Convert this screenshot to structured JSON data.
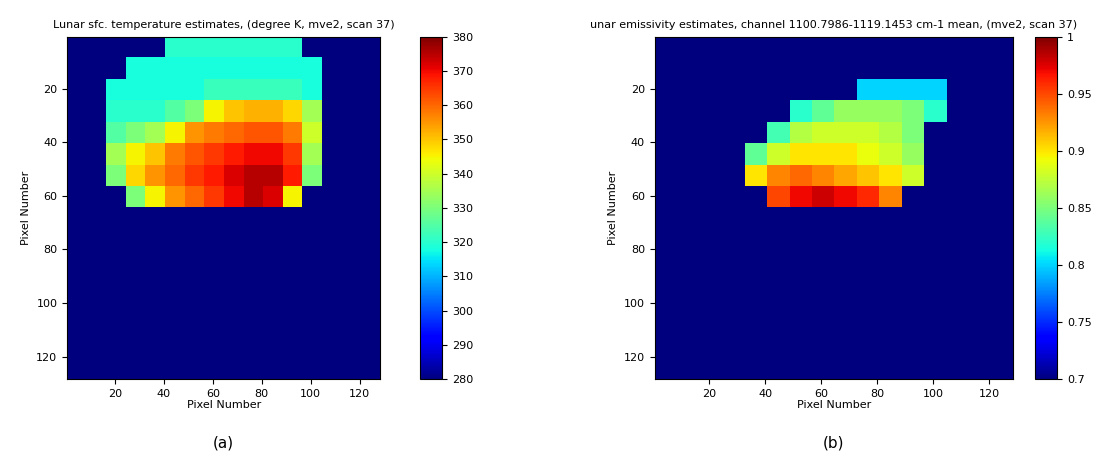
{
  "chart_data": [
    {
      "type": "heatmap",
      "title": "Lunar sfc. temperature estimates, (degree K, mve2, scan 37)",
      "x_label": "Pixel Number",
      "y_label": "Pixel Number",
      "caption": "(a)",
      "xlim": [
        0.5,
        128.5
      ],
      "ylim": [
        128.5,
        0.5
      ],
      "xticks": [
        20,
        40,
        60,
        80,
        100,
        120
      ],
      "yticks": [
        20,
        40,
        60,
        80,
        100,
        120
      ],
      "colorbar_range": [
        280,
        380
      ],
      "colorbar_ticks": [
        280,
        290,
        300,
        310,
        320,
        330,
        340,
        350,
        360,
        370,
        380
      ],
      "cells": [
        [
          280,
          280,
          280,
          280,
          280,
          320,
          320,
          320,
          320,
          320,
          320,
          320,
          280,
          280,
          280,
          280
        ],
        [
          280,
          280,
          280,
          318,
          318,
          318,
          318,
          318,
          318,
          318,
          318,
          318,
          318,
          280,
          280,
          280
        ],
        [
          280,
          280,
          318,
          318,
          318,
          318,
          318,
          322,
          322,
          322,
          322,
          322,
          318,
          280,
          280,
          280
        ],
        [
          280,
          280,
          320,
          320,
          320,
          325,
          330,
          345,
          350,
          352,
          352,
          348,
          335,
          280,
          280,
          280
        ],
        [
          280,
          280,
          325,
          330,
          335,
          345,
          355,
          358,
          360,
          362,
          362,
          358,
          340,
          280,
          280,
          280
        ],
        [
          280,
          280,
          335,
          345,
          350,
          358,
          362,
          365,
          368,
          370,
          370,
          365,
          335,
          280,
          280,
          280
        ],
        [
          280,
          280,
          330,
          348,
          355,
          360,
          365,
          368,
          372,
          375,
          375,
          368,
          330,
          280,
          280,
          280
        ],
        [
          280,
          280,
          280,
          330,
          345,
          355,
          360,
          365,
          370,
          375,
          372,
          345,
          280,
          280,
          280,
          280
        ],
        [
          280,
          280,
          280,
          280,
          280,
          280,
          280,
          280,
          280,
          280,
          280,
          280,
          280,
          280,
          280,
          280
        ],
        [
          280,
          280,
          280,
          280,
          280,
          280,
          280,
          280,
          280,
          280,
          280,
          280,
          280,
          280,
          280,
          280
        ],
        [
          280,
          280,
          280,
          280,
          280,
          280,
          280,
          280,
          280,
          280,
          280,
          280,
          280,
          280,
          280,
          280
        ],
        [
          280,
          280,
          280,
          280,
          280,
          280,
          280,
          280,
          280,
          280,
          280,
          280,
          280,
          280,
          280,
          280
        ],
        [
          280,
          280,
          280,
          280,
          280,
          280,
          280,
          280,
          280,
          280,
          280,
          280,
          280,
          280,
          280,
          280
        ],
        [
          280,
          280,
          280,
          280,
          280,
          280,
          280,
          280,
          280,
          280,
          280,
          280,
          280,
          280,
          280,
          280
        ],
        [
          280,
          280,
          280,
          280,
          280,
          280,
          280,
          280,
          280,
          280,
          280,
          280,
          280,
          280,
          280,
          280
        ],
        [
          280,
          280,
          280,
          280,
          280,
          280,
          280,
          280,
          280,
          280,
          280,
          280,
          280,
          280,
          280,
          280
        ]
      ]
    },
    {
      "type": "heatmap",
      "title": "unar emissivity estimates, channel 1100.7986-1119.1453 cm-1 mean, (mve2, scan 37)",
      "x_label": "Pixel Number",
      "y_label": "Pixel Number",
      "caption": "(b)",
      "xlim": [
        0.5,
        128.5
      ],
      "ylim": [
        128.5,
        0.5
      ],
      "xticks": [
        20,
        40,
        60,
        80,
        100,
        120
      ],
      "yticks": [
        20,
        40,
        60,
        80,
        100,
        120
      ],
      "colorbar_range": [
        0.7,
        1
      ],
      "colorbar_ticks": [
        0.7,
        0.75,
        0.8,
        0.85,
        0.9,
        0.95,
        1
      ],
      "cells": [
        [
          0.7,
          0.7,
          0.7,
          0.7,
          0.7,
          0.7,
          0.7,
          0.7,
          0.7,
          0.7,
          0.7,
          0.7,
          0.7,
          0.7,
          0.7,
          0.7
        ],
        [
          0.7,
          0.7,
          0.7,
          0.7,
          0.7,
          0.7,
          0.7,
          0.7,
          0.7,
          0.7,
          0.7,
          0.7,
          0.7,
          0.7,
          0.7,
          0.7
        ],
        [
          0.7,
          0.7,
          0.7,
          0.7,
          0.7,
          0.7,
          0.7,
          0.7,
          0.7,
          0.8,
          0.8,
          0.8,
          0.8,
          0.7,
          0.7,
          0.7
        ],
        [
          0.7,
          0.7,
          0.7,
          0.7,
          0.7,
          0.7,
          0.82,
          0.84,
          0.86,
          0.86,
          0.86,
          0.85,
          0.82,
          0.7,
          0.7,
          0.7
        ],
        [
          0.7,
          0.7,
          0.7,
          0.7,
          0.7,
          0.83,
          0.87,
          0.88,
          0.88,
          0.88,
          0.87,
          0.85,
          0.7,
          0.7,
          0.7,
          0.7
        ],
        [
          0.7,
          0.7,
          0.7,
          0.7,
          0.84,
          0.88,
          0.9,
          0.9,
          0.9,
          0.89,
          0.88,
          0.86,
          0.7,
          0.7,
          0.7,
          0.7
        ],
        [
          0.7,
          0.7,
          0.7,
          0.7,
          0.9,
          0.93,
          0.94,
          0.93,
          0.92,
          0.91,
          0.9,
          0.88,
          0.7,
          0.7,
          0.7,
          0.7
        ],
        [
          0.7,
          0.7,
          0.7,
          0.7,
          0.7,
          0.95,
          0.97,
          0.98,
          0.97,
          0.96,
          0.93,
          0.7,
          0.7,
          0.7,
          0.7,
          0.7
        ],
        [
          0.7,
          0.7,
          0.7,
          0.7,
          0.7,
          0.7,
          0.7,
          0.7,
          0.7,
          0.7,
          0.7,
          0.7,
          0.7,
          0.7,
          0.7,
          0.7
        ],
        [
          0.7,
          0.7,
          0.7,
          0.7,
          0.7,
          0.7,
          0.7,
          0.7,
          0.7,
          0.7,
          0.7,
          0.7,
          0.7,
          0.7,
          0.7,
          0.7
        ],
        [
          0.7,
          0.7,
          0.7,
          0.7,
          0.7,
          0.7,
          0.7,
          0.7,
          0.7,
          0.7,
          0.7,
          0.7,
          0.7,
          0.7,
          0.7,
          0.7
        ],
        [
          0.7,
          0.7,
          0.7,
          0.7,
          0.7,
          0.7,
          0.7,
          0.7,
          0.7,
          0.7,
          0.7,
          0.7,
          0.7,
          0.7,
          0.7,
          0.7
        ],
        [
          0.7,
          0.7,
          0.7,
          0.7,
          0.7,
          0.7,
          0.7,
          0.7,
          0.7,
          0.7,
          0.7,
          0.7,
          0.7,
          0.7,
          0.7,
          0.7
        ],
        [
          0.7,
          0.7,
          0.7,
          0.7,
          0.7,
          0.7,
          0.7,
          0.7,
          0.7,
          0.7,
          0.7,
          0.7,
          0.7,
          0.7,
          0.7,
          0.7
        ],
        [
          0.7,
          0.7,
          0.7,
          0.7,
          0.7,
          0.7,
          0.7,
          0.7,
          0.7,
          0.7,
          0.7,
          0.7,
          0.7,
          0.7,
          0.7,
          0.7
        ],
        [
          0.7,
          0.7,
          0.7,
          0.7,
          0.7,
          0.7,
          0.7,
          0.7,
          0.7,
          0.7,
          0.7,
          0.7,
          0.7,
          0.7,
          0.7,
          0.7
        ]
      ]
    }
  ]
}
